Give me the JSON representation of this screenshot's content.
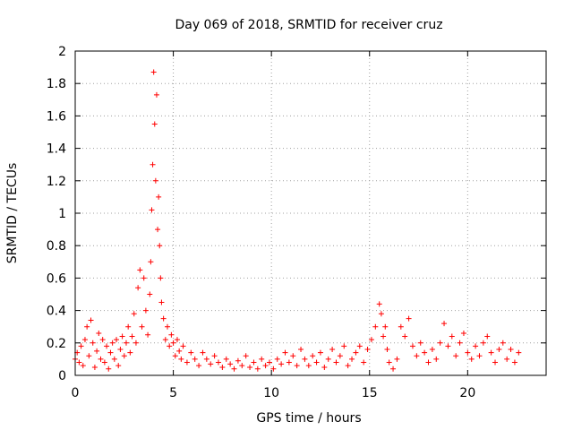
{
  "chart_data": {
    "type": "scatter",
    "title": "Day 069 of 2018, SRMTID for receiver cruz",
    "xlabel": "GPS time / hours",
    "ylabel": "SRMTID / TECUs",
    "xlim": [
      0,
      24
    ],
    "ylim": [
      0,
      2
    ],
    "xticks": [
      0,
      5,
      10,
      15,
      20
    ],
    "yticks": [
      0,
      0.2,
      0.4,
      0.6,
      0.8,
      1,
      1.2,
      1.4,
      1.6,
      1.8,
      2
    ],
    "grid": true,
    "marker": "+",
    "color": "#ff0000",
    "series": [
      {
        "name": "SRMTID",
        "points": [
          [
            0.0,
            0.1
          ],
          [
            0.1,
            0.14
          ],
          [
            0.2,
            0.08
          ],
          [
            0.3,
            0.18
          ],
          [
            0.4,
            0.06
          ],
          [
            0.5,
            0.22
          ],
          [
            0.6,
            0.3
          ],
          [
            0.7,
            0.12
          ],
          [
            0.8,
            0.34
          ],
          [
            0.9,
            0.2
          ],
          [
            1.0,
            0.05
          ],
          [
            1.1,
            0.15
          ],
          [
            1.2,
            0.26
          ],
          [
            1.3,
            0.1
          ],
          [
            1.4,
            0.22
          ],
          [
            1.5,
            0.08
          ],
          [
            1.6,
            0.18
          ],
          [
            1.7,
            0.04
          ],
          [
            1.8,
            0.14
          ],
          [
            1.9,
            0.2
          ],
          [
            2.0,
            0.1
          ],
          [
            2.1,
            0.22
          ],
          [
            2.2,
            0.06
          ],
          [
            2.3,
            0.16
          ],
          [
            2.4,
            0.24
          ],
          [
            2.5,
            0.12
          ],
          [
            2.6,
            0.2
          ],
          [
            2.7,
            0.3
          ],
          [
            2.8,
            0.14
          ],
          [
            2.9,
            0.24
          ],
          [
            3.0,
            0.38
          ],
          [
            3.1,
            0.2
          ],
          [
            3.2,
            0.54
          ],
          [
            3.3,
            0.65
          ],
          [
            3.4,
            0.3
          ],
          [
            3.5,
            0.6
          ],
          [
            3.6,
            0.4
          ],
          [
            3.7,
            0.25
          ],
          [
            3.8,
            0.5
          ],
          [
            3.85,
            0.7
          ],
          [
            3.9,
            1.02
          ],
          [
            3.95,
            1.3
          ],
          [
            4.0,
            1.87
          ],
          [
            4.05,
            1.55
          ],
          [
            4.1,
            1.2
          ],
          [
            4.15,
            1.73
          ],
          [
            4.2,
            0.9
          ],
          [
            4.25,
            1.1
          ],
          [
            4.3,
            0.8
          ],
          [
            4.35,
            0.6
          ],
          [
            4.4,
            0.45
          ],
          [
            4.5,
            0.35
          ],
          [
            4.6,
            0.22
          ],
          [
            4.7,
            0.3
          ],
          [
            4.8,
            0.18
          ],
          [
            4.9,
            0.25
          ],
          [
            5.0,
            0.2
          ],
          [
            5.1,
            0.12
          ],
          [
            5.2,
            0.22
          ],
          [
            5.3,
            0.15
          ],
          [
            5.4,
            0.1
          ],
          [
            5.5,
            0.18
          ],
          [
            5.7,
            0.08
          ],
          [
            5.9,
            0.14
          ],
          [
            6.1,
            0.1
          ],
          [
            6.3,
            0.06
          ],
          [
            6.5,
            0.14
          ],
          [
            6.7,
            0.1
          ],
          [
            6.9,
            0.07
          ],
          [
            7.1,
            0.12
          ],
          [
            7.3,
            0.08
          ],
          [
            7.5,
            0.05
          ],
          [
            7.7,
            0.1
          ],
          [
            7.9,
            0.07
          ],
          [
            8.1,
            0.04
          ],
          [
            8.3,
            0.09
          ],
          [
            8.5,
            0.06
          ],
          [
            8.7,
            0.12
          ],
          [
            8.9,
            0.05
          ],
          [
            9.1,
            0.08
          ],
          [
            9.3,
            0.04
          ],
          [
            9.5,
            0.1
          ],
          [
            9.7,
            0.06
          ],
          [
            9.9,
            0.08
          ],
          [
            10.1,
            0.04
          ],
          [
            10.3,
            0.1
          ],
          [
            10.5,
            0.07
          ],
          [
            10.7,
            0.14
          ],
          [
            10.9,
            0.08
          ],
          [
            11.1,
            0.12
          ],
          [
            11.3,
            0.06
          ],
          [
            11.5,
            0.16
          ],
          [
            11.7,
            0.1
          ],
          [
            11.9,
            0.06
          ],
          [
            12.1,
            0.12
          ],
          [
            12.3,
            0.08
          ],
          [
            12.5,
            0.14
          ],
          [
            12.7,
            0.05
          ],
          [
            12.9,
            0.1
          ],
          [
            13.1,
            0.16
          ],
          [
            13.3,
            0.08
          ],
          [
            13.5,
            0.12
          ],
          [
            13.7,
            0.18
          ],
          [
            13.9,
            0.06
          ],
          [
            14.1,
            0.1
          ],
          [
            14.3,
            0.14
          ],
          [
            14.5,
            0.18
          ],
          [
            14.7,
            0.08
          ],
          [
            14.9,
            0.16
          ],
          [
            15.1,
            0.22
          ],
          [
            15.3,
            0.3
          ],
          [
            15.5,
            0.44
          ],
          [
            15.6,
            0.38
          ],
          [
            15.7,
            0.24
          ],
          [
            15.8,
            0.3
          ],
          [
            15.9,
            0.16
          ],
          [
            16.0,
            0.08
          ],
          [
            16.2,
            0.04
          ],
          [
            16.4,
            0.1
          ],
          [
            16.6,
            0.3
          ],
          [
            16.8,
            0.24
          ],
          [
            17.0,
            0.35
          ],
          [
            17.2,
            0.18
          ],
          [
            17.4,
            0.12
          ],
          [
            17.6,
            0.2
          ],
          [
            17.8,
            0.14
          ],
          [
            18.0,
            0.08
          ],
          [
            18.2,
            0.16
          ],
          [
            18.4,
            0.1
          ],
          [
            18.6,
            0.2
          ],
          [
            18.8,
            0.32
          ],
          [
            19.0,
            0.18
          ],
          [
            19.2,
            0.24
          ],
          [
            19.4,
            0.12
          ],
          [
            19.6,
            0.2
          ],
          [
            19.8,
            0.26
          ],
          [
            20.0,
            0.14
          ],
          [
            20.2,
            0.1
          ],
          [
            20.4,
            0.18
          ],
          [
            20.6,
            0.12
          ],
          [
            20.8,
            0.2
          ],
          [
            21.0,
            0.24
          ],
          [
            21.2,
            0.14
          ],
          [
            21.4,
            0.08
          ],
          [
            21.6,
            0.16
          ],
          [
            21.8,
            0.2
          ],
          [
            22.0,
            0.1
          ],
          [
            22.2,
            0.16
          ],
          [
            22.4,
            0.08
          ],
          [
            22.6,
            0.14
          ]
        ]
      }
    ]
  }
}
